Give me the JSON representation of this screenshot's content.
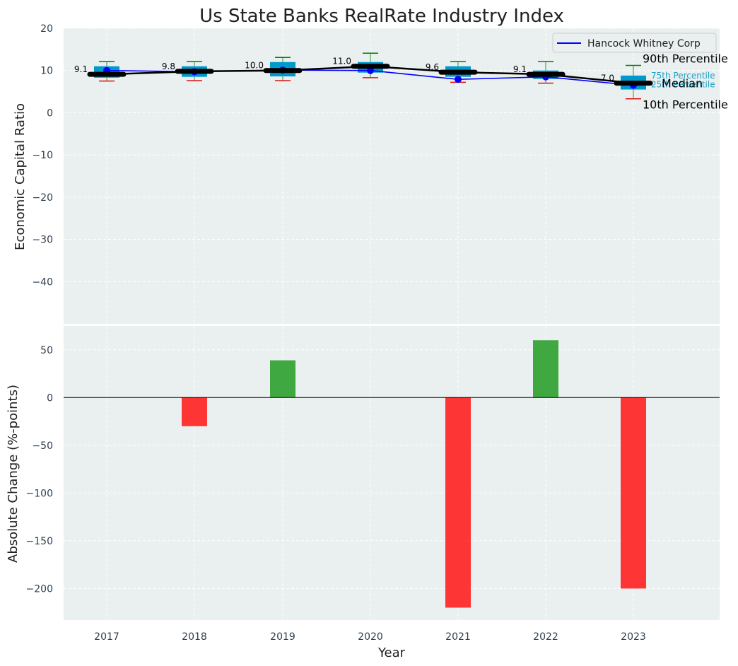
{
  "chart_data": {
    "title": "Us State Banks RealRate Industry Index",
    "xlabel": "Year",
    "top": {
      "type": "box-line",
      "ylabel": "Economic Capital Ratio",
      "ylim": [
        -50,
        20
      ],
      "yticks": [
        20,
        10,
        0,
        -10,
        -20,
        -30,
        -40
      ],
      "years": [
        "2017",
        "2018",
        "2019",
        "2020",
        "2021",
        "2022",
        "2023"
      ],
      "p10": [
        7.5,
        7.6,
        7.6,
        8.3,
        7.2,
        7.0,
        3.3
      ],
      "p25": [
        8.3,
        8.5,
        8.6,
        9.5,
        8.5,
        8.0,
        5.5
      ],
      "median": [
        9.1,
        9.8,
        10.0,
        11.0,
        9.6,
        9.1,
        7.0
      ],
      "p75": [
        11.0,
        11.0,
        12.0,
        12.0,
        11.0,
        10.0,
        8.8
      ],
      "p90": [
        12.1,
        12.1,
        13.1,
        14.1,
        12.1,
        12.1,
        11.2
      ],
      "median_labels": [
        "9.1",
        "9.8",
        "10.0",
        "11.0",
        "9.6",
        "9.1",
        "7.0"
      ],
      "series": [
        {
          "name": "Hancock Whitney Corp",
          "color": "#0000ff",
          "values": [
            10.0,
            9.7,
            10.1,
            10.0,
            7.9,
            8.5,
            6.5
          ]
        }
      ],
      "annotations": {
        "p90": "90th Percentile",
        "p75": "75th Percentile",
        "median": "Median",
        "p25": "25th Percentile",
        "p10": "10th Percentile"
      }
    },
    "bottom": {
      "type": "bar",
      "ylabel": "Absolute Change (%-points)",
      "ylim": [
        -233,
        75
      ],
      "yticks": [
        50,
        0,
        -50,
        -100,
        -150,
        -200
      ],
      "years": [
        "2017",
        "2018",
        "2019",
        "2020",
        "2021",
        "2022",
        "2023"
      ],
      "values": [
        0,
        -30,
        39,
        0,
        -220,
        60,
        -200
      ],
      "positive_color": "#2ca02c",
      "negative_color": "#ff2020"
    }
  }
}
